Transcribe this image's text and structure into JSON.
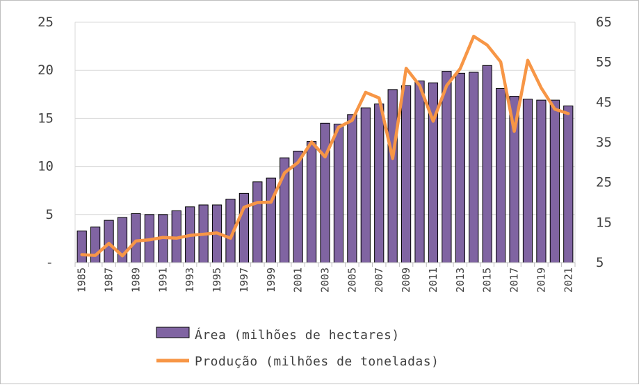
{
  "chart_data": {
    "type": "bar+line",
    "title": "",
    "categories": [
      "1985",
      "1986",
      "1987",
      "1988",
      "1989",
      "1990",
      "1991",
      "1992",
      "1993",
      "1994",
      "1995",
      "1996",
      "1997",
      "1998",
      "1999",
      "2000",
      "2001",
      "2002",
      "2003",
      "2004",
      "2005",
      "2006",
      "2007",
      "2008",
      "2009",
      "2010",
      "2011",
      "2012",
      "2013",
      "2014",
      "2015",
      "2016",
      "2017",
      "2018",
      "2019",
      "2020",
      "2021"
    ],
    "x_tick_labels": [
      "1985",
      "1987",
      "1989",
      "1991",
      "1993",
      "1995",
      "1997",
      "1999",
      "2001",
      "2003",
      "2005",
      "2007",
      "2009",
      "2011",
      "2013",
      "2015",
      "2017",
      "2019",
      "2021"
    ],
    "left_axis": {
      "ylim": [
        0,
        25
      ],
      "ticks": [
        "-",
        "5",
        "10",
        "15",
        "20",
        "25"
      ]
    },
    "right_axis": {
      "ylim": [
        5,
        65
      ],
      "ticks": [
        "5",
        "15",
        "25",
        "35",
        "45",
        "55",
        "65"
      ]
    },
    "grid": true,
    "legend_position": "bottom",
    "series": [
      {
        "name": "Área (milhões de hectares)",
        "type": "bar",
        "axis": "left",
        "color": "#8064a2",
        "values": [
          3.3,
          3.7,
          4.4,
          4.7,
          5.1,
          5.0,
          5.0,
          5.4,
          5.8,
          6.0,
          6.0,
          6.6,
          7.2,
          8.4,
          8.8,
          10.9,
          11.6,
          12.6,
          14.5,
          14.4,
          15.4,
          16.1,
          16.5,
          18.0,
          18.4,
          18.9,
          18.7,
          19.9,
          19.7,
          19.8,
          20.5,
          18.1,
          17.3,
          17.0,
          16.9,
          16.9,
          16.3
        ]
      },
      {
        "name": "Produção (milhões de toneladas)",
        "type": "line",
        "axis": "right",
        "color": "#f79646",
        "values": [
          7.0,
          6.8,
          9.8,
          6.7,
          10.4,
          10.7,
          11.3,
          11.1,
          11.8,
          12.1,
          12.4,
          11.1,
          18.8,
          20.0,
          20.1,
          27.4,
          30.0,
          35.1,
          31.4,
          38.8,
          40.5,
          47.5,
          46.1,
          31.0,
          53.5,
          49.2,
          40.3,
          49.2,
          53.4,
          61.5,
          59.3,
          55.1,
          37.8,
          55.5,
          48.6,
          43.3,
          42.2
        ]
      }
    ]
  }
}
